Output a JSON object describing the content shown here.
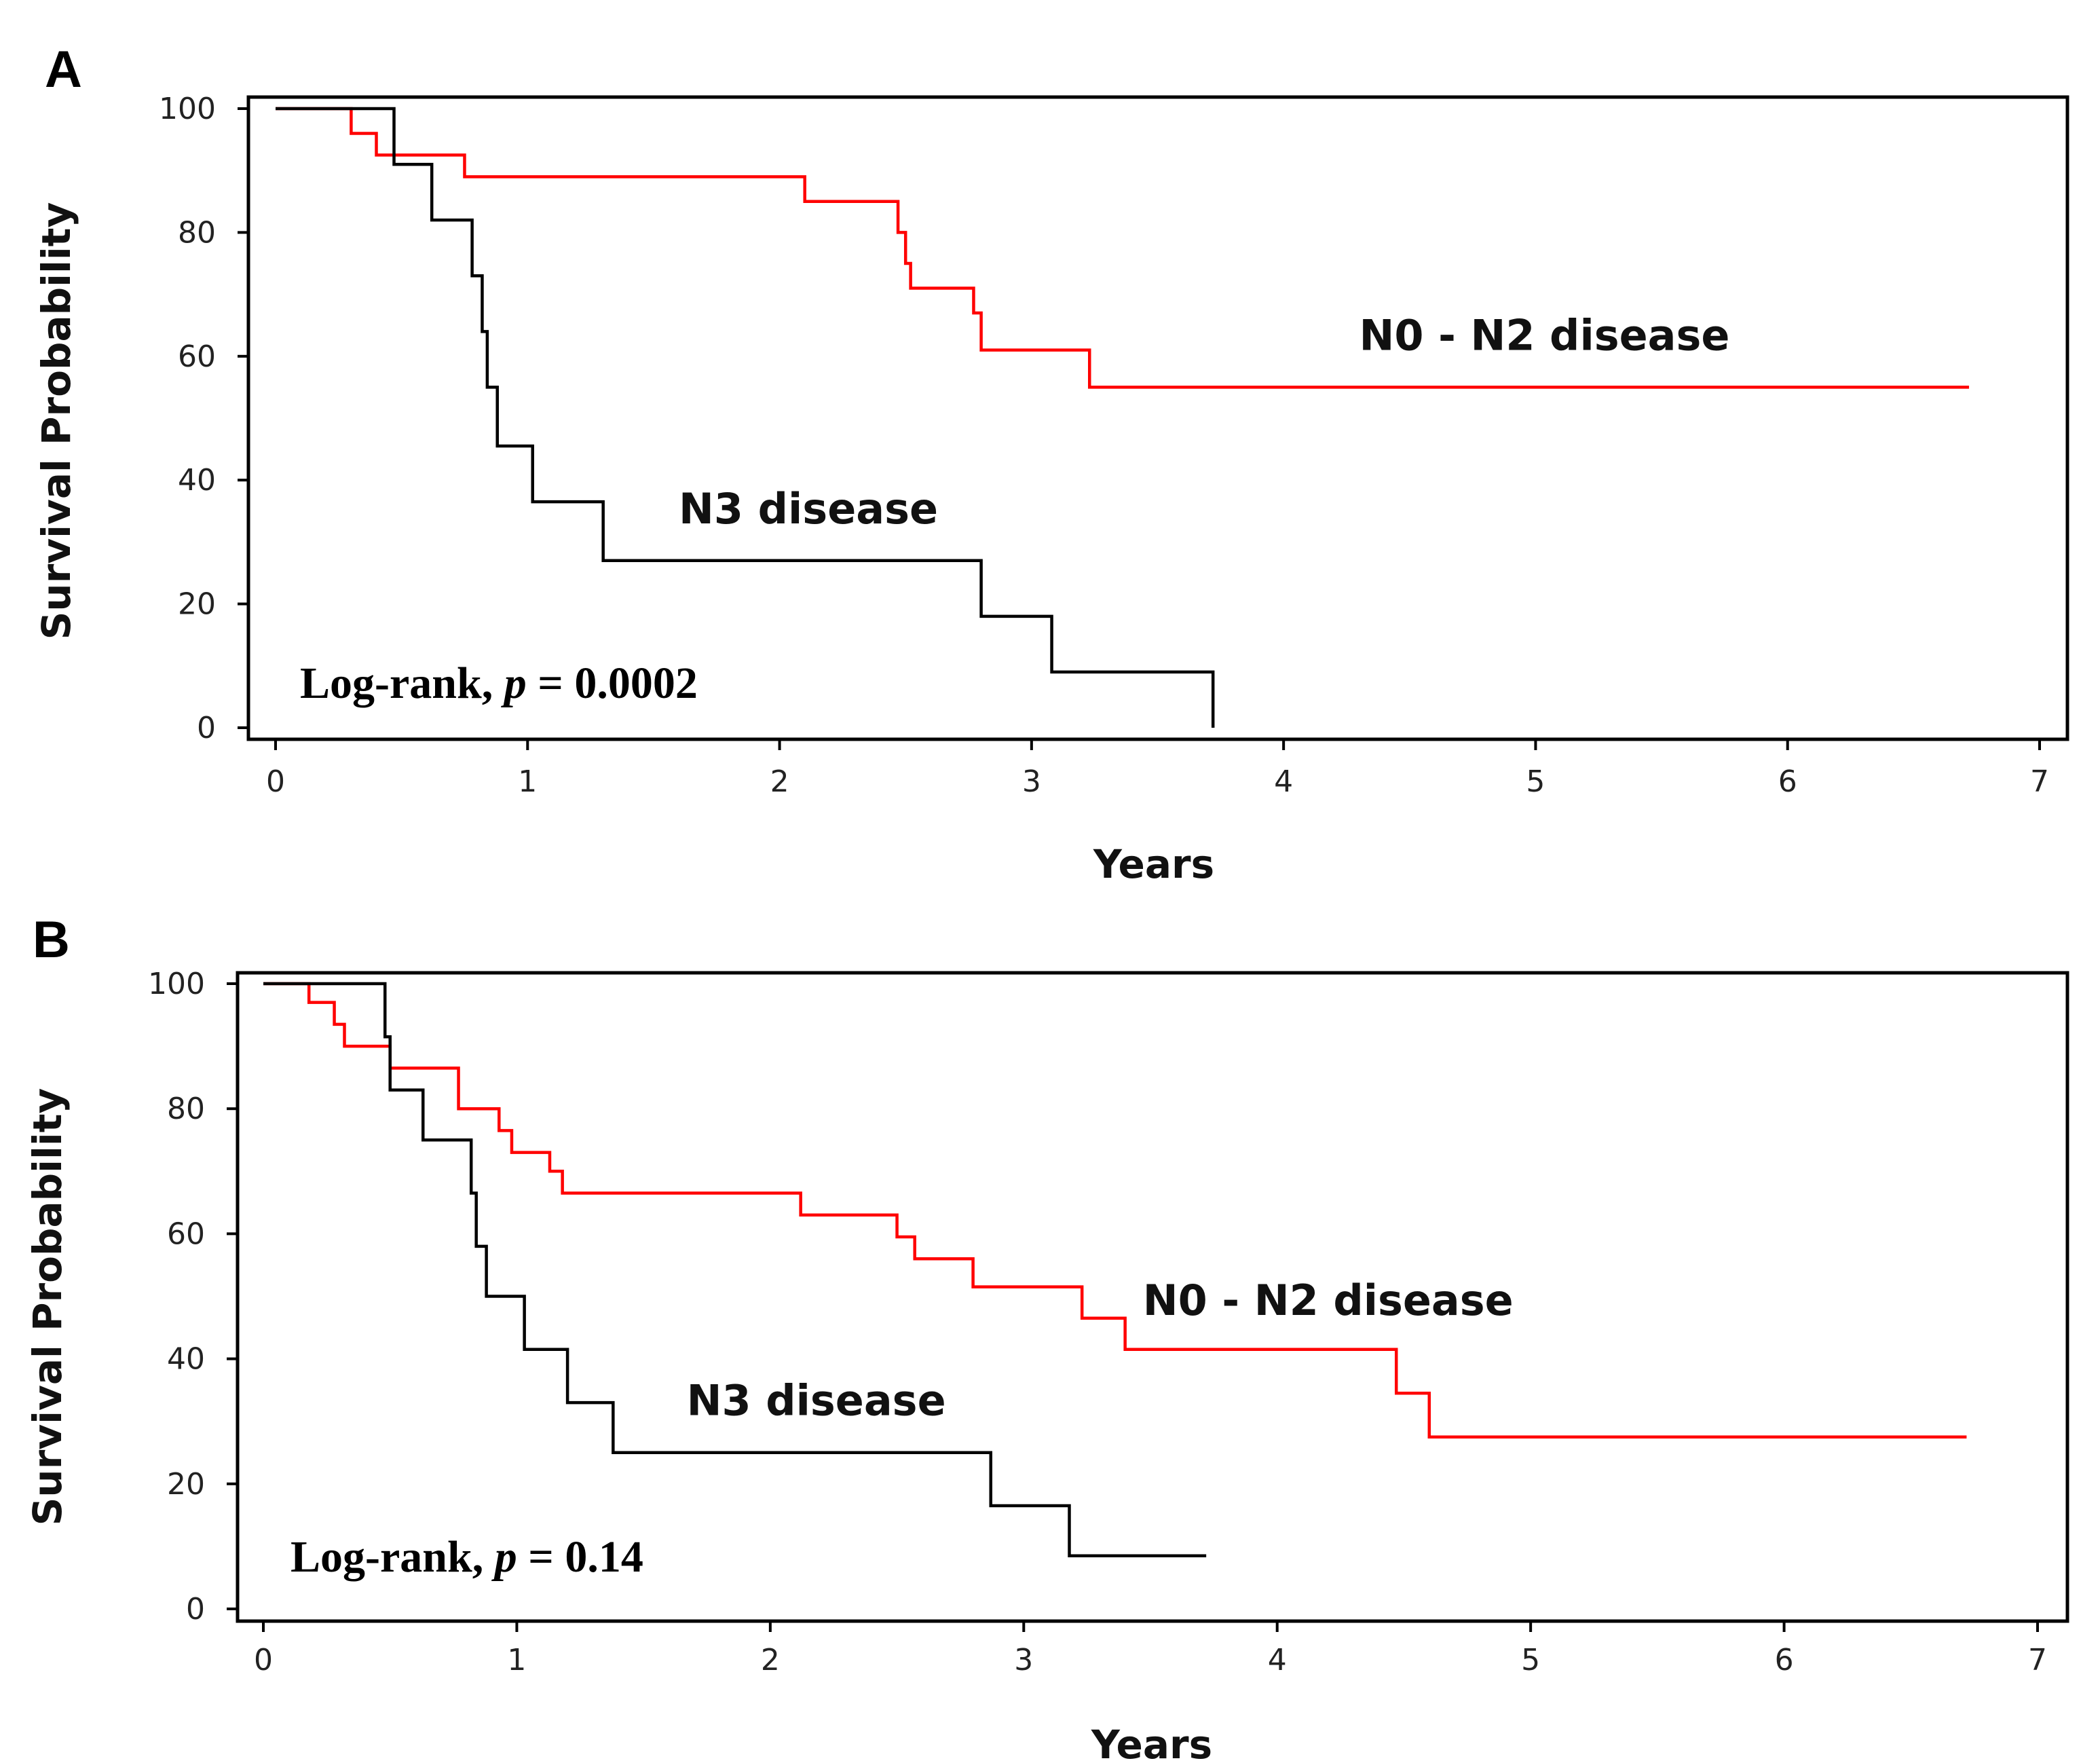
{
  "chart_data": [
    {
      "panel": "A",
      "type": "line",
      "xlabel": "Years",
      "ylabel": "Survival Probability",
      "xlim": [
        0,
        7
      ],
      "ylim": [
        0,
        100
      ],
      "xticks": [
        "0",
        "1",
        "2",
        "3",
        "4",
        "5",
        "6",
        "7"
      ],
      "yticks": [
        "0",
        "20",
        "40",
        "60",
        "80",
        "100"
      ],
      "stat_text": {
        "prefix": "Log-rank, ",
        "p": "p",
        "suffix": " = 0.0002"
      },
      "series": [
        {
          "name": "N0 - N2 disease",
          "color": "#ff0000",
          "label_pos": [
            4.3,
            61
          ],
          "steps": [
            [
              0,
              100
            ],
            [
              0.3,
              96
            ],
            [
              0.4,
              92.5
            ],
            [
              0.75,
              89
            ],
            [
              2.1,
              85
            ],
            [
              2.47,
              80
            ],
            [
              2.5,
              75
            ],
            [
              2.52,
              71
            ],
            [
              2.77,
              67
            ],
            [
              2.8,
              61
            ],
            [
              3.23,
              55
            ]
          ],
          "end_x": 6.72
        },
        {
          "name": "N3 disease",
          "color": "#000000",
          "label_pos": [
            1.6,
            33
          ],
          "steps": [
            [
              0,
              100
            ],
            [
              0.47,
              91
            ],
            [
              0.62,
              82
            ],
            [
              0.78,
              73
            ],
            [
              0.82,
              64
            ],
            [
              0.84,
              55
            ],
            [
              0.88,
              45.5
            ],
            [
              1.02,
              36.5
            ],
            [
              1.3,
              27
            ],
            [
              2.8,
              18
            ],
            [
              3.08,
              9
            ],
            [
              3.72,
              0
            ]
          ],
          "end_x": 3.72
        }
      ]
    },
    {
      "panel": "B",
      "type": "line",
      "xlabel": "Years",
      "ylabel": "Survival Probability",
      "xlim": [
        0,
        7
      ],
      "ylim": [
        0,
        100
      ],
      "xticks": [
        "0",
        "1",
        "2",
        "3",
        "4",
        "5",
        "6",
        "7"
      ],
      "yticks": [
        "0",
        "20",
        "40",
        "60",
        "80",
        "100"
      ],
      "stat_text": {
        "prefix": "Log-rank, ",
        "p": "p",
        "suffix": " = 0.14"
      },
      "series": [
        {
          "name": "N0 - N2 disease",
          "color": "#ff0000",
          "label_pos": [
            3.47,
            47
          ],
          "steps": [
            [
              0,
              100
            ],
            [
              0.18,
              97
            ],
            [
              0.28,
              93.5
            ],
            [
              0.32,
              90
            ],
            [
              0.5,
              86.5
            ],
            [
              0.77,
              80
            ],
            [
              0.93,
              76.5
            ],
            [
              0.98,
              73
            ],
            [
              1.13,
              70
            ],
            [
              1.18,
              66.5
            ],
            [
              2.12,
              63
            ],
            [
              2.5,
              59.5
            ],
            [
              2.57,
              56
            ],
            [
              2.8,
              51.5
            ],
            [
              3.23,
              46.5
            ],
            [
              3.4,
              41.5
            ],
            [
              4.47,
              34.5
            ],
            [
              4.6,
              27.5
            ]
          ],
          "end_x": 6.72
        },
        {
          "name": "N3 disease",
          "color": "#000000",
          "label_pos": [
            1.67,
            31
          ],
          "steps": [
            [
              0,
              100
            ],
            [
              0.48,
              91.5
            ],
            [
              0.5,
              83
            ],
            [
              0.63,
              75
            ],
            [
              0.82,
              66.5
            ],
            [
              0.84,
              58
            ],
            [
              0.88,
              50
            ],
            [
              1.03,
              41.5
            ],
            [
              1.2,
              33
            ],
            [
              1.38,
              25
            ],
            [
              2.87,
              16.5
            ],
            [
              3.18,
              8.5
            ]
          ],
          "end_x": 3.72
        }
      ]
    }
  ]
}
